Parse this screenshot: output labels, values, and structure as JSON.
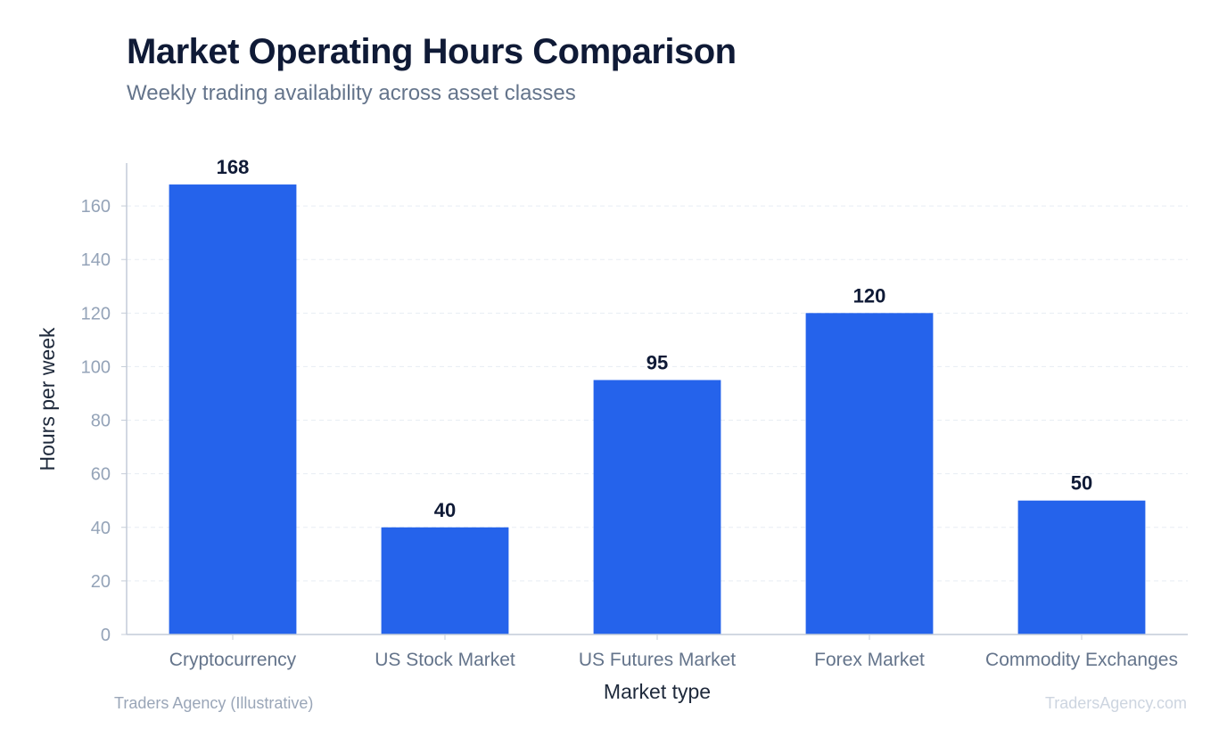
{
  "chart_data": {
    "type": "bar",
    "title": "Market Operating Hours Comparison",
    "subtitle": "Weekly trading availability across asset classes",
    "xlabel": "Market type",
    "ylabel": "Hours per week",
    "categories": [
      "Cryptocurrency",
      "US Stock Market",
      "US Futures Market",
      "Forex Market",
      "Commodity Exchanges"
    ],
    "values": [
      168,
      40,
      95,
      120,
      50
    ],
    "ylim": [
      0,
      176
    ],
    "yticks": [
      0,
      20,
      40,
      60,
      80,
      100,
      120,
      140,
      160
    ],
    "grid": true,
    "bar_color": "#2563eb"
  },
  "footer": {
    "source": "Traders Agency (Illustrative)",
    "watermark": "TradersAgency.com"
  }
}
